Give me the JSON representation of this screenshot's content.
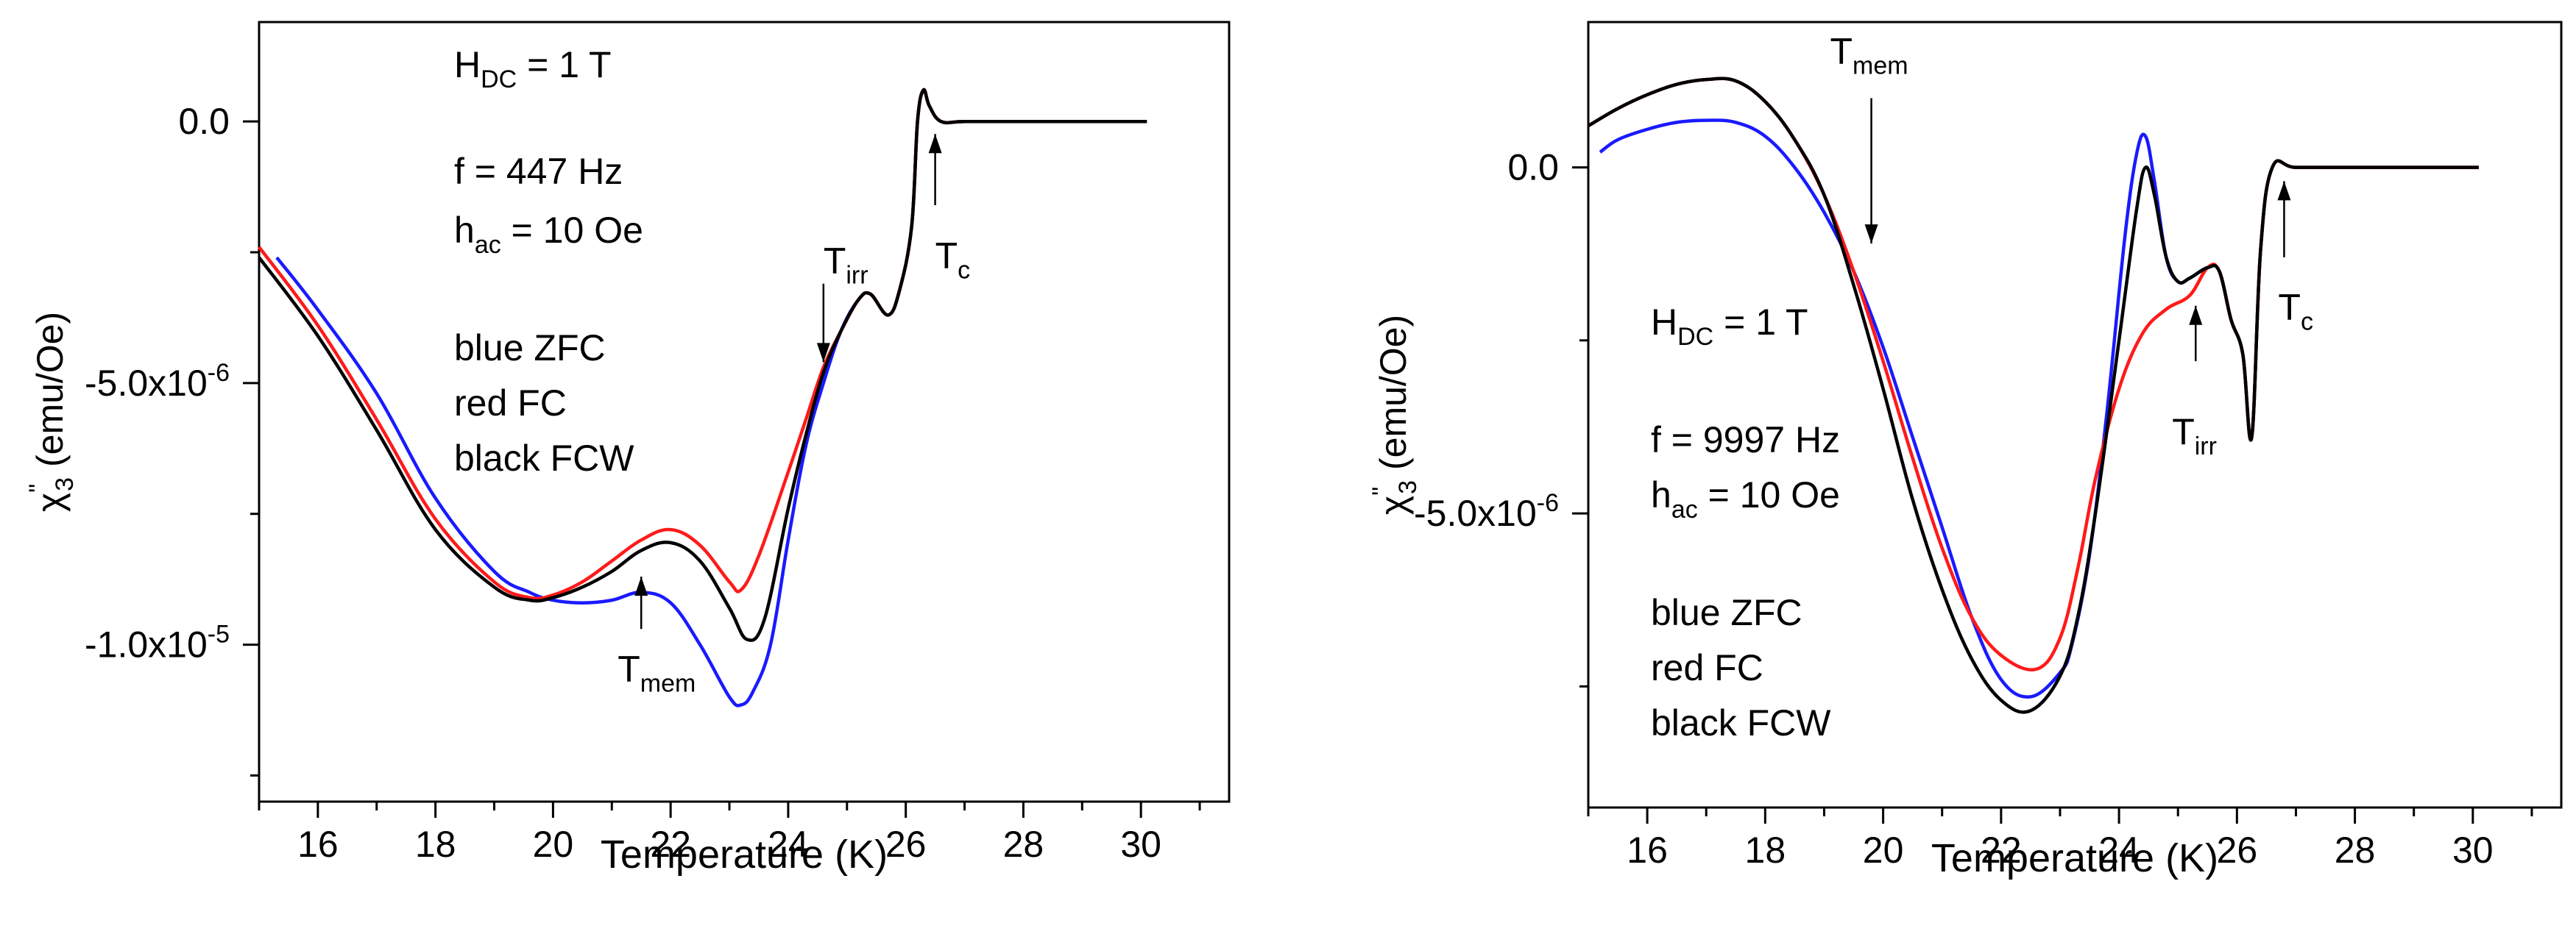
{
  "colors": {
    "blue": "#1a1aff",
    "red": "#ff1a1a",
    "black": "#000000"
  },
  "chart_data": [
    {
      "type": "line",
      "xlabel": "Temperature (K)",
      "ylabel_greek": "χ",
      "ylabel_sub": "3",
      "ylabel_sup": "\"",
      "ylabel_unit": " (emu/Oe)",
      "xlim": [
        15,
        31.5
      ],
      "ylim": [
        -1.3e-05,
        1.9e-06
      ],
      "xticks": [
        16,
        18,
        20,
        22,
        24,
        26,
        28,
        30
      ],
      "xtick_labels": [
        "16",
        "18",
        "20",
        "22",
        "24",
        "26",
        "28",
        "30"
      ],
      "yticks": [
        0,
        -5e-06,
        -1e-05
      ],
      "ytick_labels": [
        {
          "base": "0.0",
          "exp": ""
        },
        {
          "base": "-5.0x10",
          "exp": "-6"
        },
        {
          "base": "-1.0x10",
          "exp": "-5"
        }
      ],
      "info": {
        "h_base": "H",
        "h_sub": "DC",
        "h_rest": " = 1 T",
        "freq": "f = 447 Hz",
        "hac_base": "h",
        "hac_sub": "ac",
        "hac_rest": " = 10 Oe",
        "legend": [
          "blue ZFC",
          "red FC",
          "black FCW"
        ]
      },
      "annotations": [
        {
          "base": "T",
          "sub": "irr",
          "arrow": "down",
          "tx": 24.6,
          "ty": -2.9e-06,
          "ax": 24.6,
          "ay_from": -3.1e-06,
          "ay_to": -4.6e-06
        },
        {
          "base": "T",
          "sub": "c",
          "arrow": "up",
          "tx": 26.5,
          "ty": -2.8e-06,
          "ax": 26.5,
          "ay_from": -1.6e-06,
          "ay_to": -2.4e-07
        },
        {
          "base": "T",
          "sub": "mem",
          "arrow": "up",
          "tx": 21.1,
          "ty": -1.07e-05,
          "ax": 21.5,
          "ay_from": -9.7e-06,
          "ay_to": -8.7e-06
        }
      ],
      "series": [
        {
          "name": "ZFC",
          "color": "blue",
          "x": [
            15.3,
            16.0,
            17.0,
            18.0,
            19.0,
            19.6,
            20.0,
            20.5,
            21.0,
            21.5,
            22.0,
            22.5,
            23.0,
            23.2,
            23.4,
            23.7,
            24.0,
            24.3,
            24.6,
            24.9,
            25.2,
            25.4,
            25.7,
            25.9,
            26.1,
            26.2,
            26.3,
            26.4,
            26.6,
            27.0,
            28.0,
            29.0,
            30.1
          ],
          "y": [
            -2.6e-06,
            -3.6e-06,
            -5.2e-06,
            -7.2e-06,
            -8.6e-06,
            -9e-06,
            -9.15e-06,
            -9.2e-06,
            -9.15e-06,
            -9e-06,
            -9.2e-06,
            -1e-05,
            -1.1e-05,
            -1.115e-05,
            -1.09e-05,
            -1e-05,
            -8e-06,
            -6.2e-06,
            -5e-06,
            -4e-06,
            -3.4e-06,
            -3.3e-06,
            -3.7e-06,
            -3.2e-06,
            -2e-06,
            0,
            6e-07,
            3e-07,
            0,
            0,
            0,
            0,
            0
          ]
        },
        {
          "name": "FC",
          "color": "red",
          "x": [
            15.0,
            16.0,
            17.0,
            18.0,
            19.0,
            19.6,
            20.0,
            20.5,
            21.0,
            21.5,
            22.0,
            22.5,
            23.0,
            23.2,
            23.5,
            24.0,
            24.3,
            24.6,
            24.9,
            25.2,
            25.4,
            25.7,
            25.9,
            26.1,
            26.2,
            26.3,
            26.4,
            26.6,
            27.0,
            28.0,
            29.0,
            30.1
          ],
          "y": [
            -2.4e-06,
            -3.9e-06,
            -5.7e-06,
            -7.6e-06,
            -8.8e-06,
            -9.1e-06,
            -9.05e-06,
            -8.8e-06,
            -8.4e-06,
            -8e-06,
            -7.8e-06,
            -8.1e-06,
            -8.8e-06,
            -8.95e-06,
            -8.3e-06,
            -6.7e-06,
            -5.7e-06,
            -4.7e-06,
            -4e-06,
            -3.4e-06,
            -3.3e-06,
            -3.7e-06,
            -3.2e-06,
            -2e-06,
            0,
            6e-07,
            3e-07,
            0,
            0,
            0,
            0,
            0
          ]
        },
        {
          "name": "FCW",
          "color": "black",
          "x": [
            15.0,
            16.0,
            17.0,
            18.0,
            19.0,
            19.6,
            20.0,
            20.5,
            21.0,
            21.5,
            22.0,
            22.5,
            23.0,
            23.3,
            23.6,
            24.0,
            24.3,
            24.6,
            24.9,
            25.2,
            25.4,
            25.7,
            25.9,
            26.1,
            26.2,
            26.3,
            26.4,
            26.6,
            27.0,
            28.0,
            29.0,
            30.1
          ],
          "y": [
            -2.6e-06,
            -4.1e-06,
            -5.9e-06,
            -7.8e-06,
            -8.9e-06,
            -9.15e-06,
            -9.1e-06,
            -8.9e-06,
            -8.6e-06,
            -8.2e-06,
            -8.05e-06,
            -8.4e-06,
            -9.3e-06,
            -9.9e-06,
            -9.5e-06,
            -7.4e-06,
            -6e-06,
            -4.8e-06,
            -4e-06,
            -3.4e-06,
            -3.3e-06,
            -3.7e-06,
            -3.2e-06,
            -2e-06,
            0,
            6e-07,
            3e-07,
            0,
            0,
            0,
            0,
            0
          ]
        }
      ]
    },
    {
      "type": "line",
      "xlabel": "Temperature (K)",
      "ylabel_greek": "χ",
      "ylabel_sub": "3",
      "ylabel_sup": "\"",
      "ylabel_unit": " (emu/Oe)",
      "xlim": [
        15,
        31.5
      ],
      "ylim": [
        -9.25e-06,
        2.1e-06
      ],
      "xticks": [
        16,
        18,
        20,
        22,
        24,
        26,
        28,
        30
      ],
      "xtick_labels": [
        "16",
        "18",
        "20",
        "22",
        "24",
        "26",
        "28",
        "30"
      ],
      "yticks": [
        0,
        -5e-06
      ],
      "ytick_labels": [
        {
          "base": "0.0",
          "exp": ""
        },
        {
          "base": "-5.0x10",
          "exp": "-6"
        }
      ],
      "info": {
        "h_base": "H",
        "h_sub": "DC",
        "h_rest": " = 1 T",
        "freq": "f = 9997 Hz",
        "hac_base": "h",
        "hac_sub": "ac",
        "hac_rest": " = 10 Oe",
        "legend": [
          "blue ZFC",
          "red FC",
          "black FCW"
        ]
      },
      "annotations": [
        {
          "base": "T",
          "sub": "mem",
          "arrow": "down",
          "tx": 19.1,
          "ty": 1.5e-06,
          "ax": 19.8,
          "ay_from": 1e-06,
          "ay_to": -1.1e-06
        },
        {
          "base": "T",
          "sub": "irr",
          "arrow": "up",
          "tx": 24.9,
          "ty": -4e-06,
          "ax": 25.3,
          "ay_from": -2.8e-06,
          "ay_to": -2e-06
        },
        {
          "base": "T",
          "sub": "c",
          "arrow": "up",
          "tx": 26.7,
          "ty": -2.2e-06,
          "ax": 26.8,
          "ay_from": -1.3e-06,
          "ay_to": -2e-07
        }
      ],
      "series": [
        {
          "name": "ZFC",
          "color": "blue",
          "x": [
            15.2,
            15.5,
            16.0,
            16.5,
            17.0,
            17.5,
            18.0,
            18.5,
            19.0,
            19.5,
            20.0,
            20.5,
            21.0,
            21.5,
            22.0,
            22.5,
            23.0,
            23.2,
            23.5,
            23.8,
            24.1,
            24.3,
            24.45,
            24.6,
            24.8,
            25.0,
            25.2,
            25.5,
            25.7,
            25.9,
            26.1,
            26.25,
            26.4,
            26.6,
            27.0,
            28.0,
            29.0,
            30.1
          ],
          "y": [
            2.2e-07,
            4e-07,
            5.5e-07,
            6.5e-07,
            6.8e-07,
            6.5e-07,
            4.5e-07,
            0,
            -6.5e-07,
            -1.5e-06,
            -2.6e-06,
            -3.9e-06,
            -5.2e-06,
            -6.5e-06,
            -7.4e-06,
            -7.65e-06,
            -7.3e-06,
            -6.9e-06,
            -5.6e-06,
            -3.5e-06,
            -1e-06,
            2e-07,
            4.5e-07,
            -2e-07,
            -1.3e-06,
            -1.65e-06,
            -1.6e-06,
            -1.45e-06,
            -1.5e-06,
            -2.2e-06,
            -2.7e-06,
            -3.9e-06,
            -1.2e-06,
            0,
            0,
            0,
            0,
            0
          ]
        },
        {
          "name": "FC",
          "color": "red",
          "x": [
            15.0,
            15.5,
            16.0,
            16.5,
            17.0,
            17.5,
            18.0,
            18.5,
            19.0,
            19.5,
            20.0,
            20.5,
            21.0,
            21.5,
            22.0,
            22.6,
            23.0,
            23.3,
            23.6,
            24.0,
            24.4,
            24.8,
            25.2,
            25.5,
            25.7,
            25.9,
            26.1,
            26.25,
            26.4,
            26.6,
            27.0,
            28.0,
            29.0,
            30.1
          ],
          "y": [
            6e-07,
            8.5e-07,
            1.05e-06,
            1.2e-06,
            1.27e-06,
            1.25e-06,
            9.5e-07,
            4e-07,
            -4e-07,
            -1.5e-06,
            -2.8e-06,
            -4.2e-06,
            -5.5e-06,
            -6.5e-06,
            -7.05e-06,
            -7.25e-06,
            -6.8e-06,
            -5.8e-06,
            -4.5e-06,
            -3.2e-06,
            -2.4e-06,
            -2.05e-06,
            -1.85e-06,
            -1.45e-06,
            -1.5e-06,
            -2.2e-06,
            -2.7e-06,
            -3.9e-06,
            -1.2e-06,
            0,
            0,
            0,
            0,
            0
          ]
        },
        {
          "name": "FCW",
          "color": "black",
          "x": [
            15.0,
            15.5,
            16.0,
            16.5,
            17.0,
            17.5,
            18.0,
            18.5,
            19.0,
            19.5,
            20.0,
            20.5,
            21.0,
            21.5,
            22.0,
            22.5,
            23.0,
            23.3,
            23.6,
            24.0,
            24.3,
            24.45,
            24.6,
            24.8,
            25.0,
            25.2,
            25.5,
            25.7,
            25.9,
            26.1,
            26.25,
            26.4,
            26.6,
            27.0,
            28.0,
            29.0,
            30.1
          ],
          "y": [
            6e-07,
            8.5e-07,
            1.05e-06,
            1.2e-06,
            1.27e-06,
            1.25e-06,
            9.5e-07,
            4e-07,
            -4e-07,
            -1.7e-06,
            -3.2e-06,
            -4.8e-06,
            -6.1e-06,
            -7.1e-06,
            -7.7e-06,
            -7.85e-06,
            -7.35e-06,
            -6.5e-06,
            -5e-06,
            -2.5e-06,
            -6e-07,
            0,
            -4e-07,
            -1.3e-06,
            -1.65e-06,
            -1.6e-06,
            -1.45e-06,
            -1.5e-06,
            -2.2e-06,
            -2.7e-06,
            -3.9e-06,
            -1.2e-06,
            0,
            0,
            0,
            0,
            0
          ]
        }
      ]
    }
  ]
}
